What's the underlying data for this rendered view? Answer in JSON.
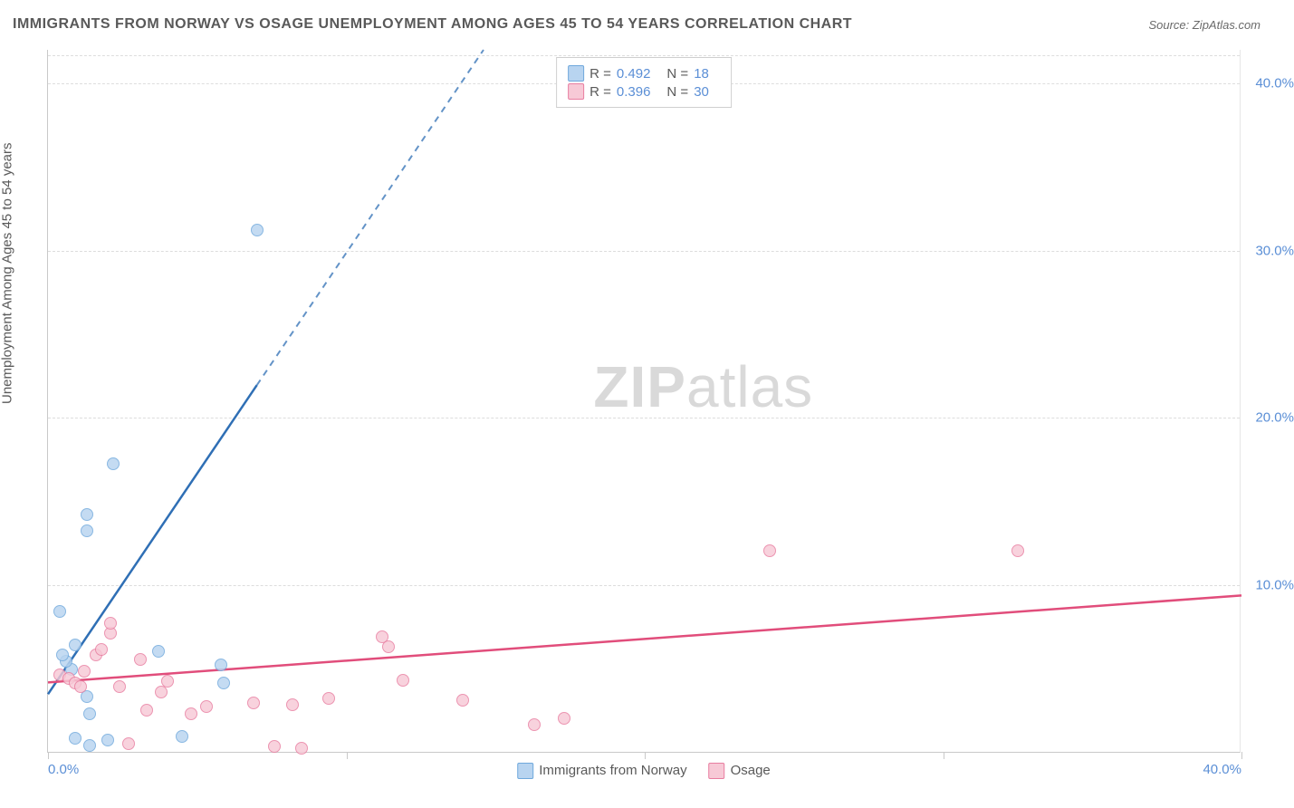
{
  "title": "IMMIGRANTS FROM NORWAY VS OSAGE UNEMPLOYMENT AMONG AGES 45 TO 54 YEARS CORRELATION CHART",
  "source": "Source: ZipAtlas.com",
  "y_axis_label": "Unemployment Among Ages 45 to 54 years",
  "watermark_a": "ZIP",
  "watermark_b": "atlas",
  "chart": {
    "type": "scatter-with-regression",
    "xlim": [
      0,
      40
    ],
    "ylim": [
      0,
      42
    ],
    "x_ticks": [
      0,
      10,
      20,
      30,
      40
    ],
    "x_tick_labels": [
      "0.0%",
      "",
      "",
      "",
      "40.0%"
    ],
    "y_ticks": [
      10,
      20,
      30,
      40
    ],
    "y_tick_labels": [
      "10.0%",
      "20.0%",
      "30.0%",
      "40.0%"
    ],
    "grid_color": "#dddddd",
    "axis_color": "#c9c9c9",
    "tick_label_color": "#5b8fd6",
    "background_color": "#ffffff",
    "point_radius": 7
  },
  "series": [
    {
      "name": "Immigrants from Norway",
      "fill": "#b8d4f0",
      "stroke": "#6fa8dc",
      "line_color": "#2f6fb5",
      "regression": {
        "x1": 0,
        "y1": 3.5,
        "x2": 40,
        "y2": 109.0
      },
      "solid_x_cut": 7.0,
      "R": "0.492",
      "N": "18",
      "points": [
        [
          0.8,
          4.9
        ],
        [
          0.6,
          5.4
        ],
        [
          0.5,
          5.8
        ],
        [
          0.9,
          6.4
        ],
        [
          0.4,
          8.4
        ],
        [
          1.3,
          3.3
        ],
        [
          1.4,
          2.3
        ],
        [
          1.3,
          13.2
        ],
        [
          1.3,
          14.2
        ],
        [
          2.2,
          17.2
        ],
        [
          0.9,
          0.8
        ],
        [
          2.0,
          0.7
        ],
        [
          1.4,
          0.4
        ],
        [
          3.7,
          6.0
        ],
        [
          4.5,
          0.9
        ],
        [
          5.8,
          5.2
        ],
        [
          5.9,
          4.1
        ],
        [
          7.0,
          31.2
        ]
      ]
    },
    {
      "name": "Osage",
      "fill": "#f7c9d6",
      "stroke": "#e87da0",
      "line_color": "#e14d7b",
      "regression": {
        "x1": 0,
        "y1": 4.2,
        "x2": 40,
        "y2": 9.4
      },
      "solid_x_cut": 40.0,
      "R": "0.396",
      "N": "30",
      "points": [
        [
          0.4,
          4.6
        ],
        [
          0.7,
          4.4
        ],
        [
          0.9,
          4.1
        ],
        [
          1.2,
          4.8
        ],
        [
          1.1,
          3.9
        ],
        [
          1.6,
          5.8
        ],
        [
          1.8,
          6.1
        ],
        [
          2.1,
          7.1
        ],
        [
          2.1,
          7.7
        ],
        [
          2.4,
          3.9
        ],
        [
          3.1,
          5.5
        ],
        [
          2.7,
          0.5
        ],
        [
          3.3,
          2.5
        ],
        [
          3.8,
          3.6
        ],
        [
          4.0,
          4.2
        ],
        [
          4.8,
          2.3
        ],
        [
          5.3,
          2.7
        ],
        [
          6.9,
          2.9
        ],
        [
          7.6,
          0.3
        ],
        [
          8.2,
          2.8
        ],
        [
          8.5,
          0.2
        ],
        [
          9.4,
          3.2
        ],
        [
          11.2,
          6.9
        ],
        [
          11.4,
          6.3
        ],
        [
          11.9,
          4.3
        ],
        [
          13.9,
          3.1
        ],
        [
          16.3,
          1.6
        ],
        [
          17.3,
          2.0
        ],
        [
          24.2,
          12.0
        ],
        [
          32.5,
          12.0
        ]
      ]
    }
  ],
  "legend_top": {
    "R_label": "R =",
    "N_label": "N ="
  },
  "legend_bottom": [
    {
      "label": "Immigrants from Norway",
      "fill": "#b8d4f0",
      "stroke": "#6fa8dc"
    },
    {
      "label": "Osage",
      "fill": "#f7c9d6",
      "stroke": "#e87da0"
    }
  ]
}
